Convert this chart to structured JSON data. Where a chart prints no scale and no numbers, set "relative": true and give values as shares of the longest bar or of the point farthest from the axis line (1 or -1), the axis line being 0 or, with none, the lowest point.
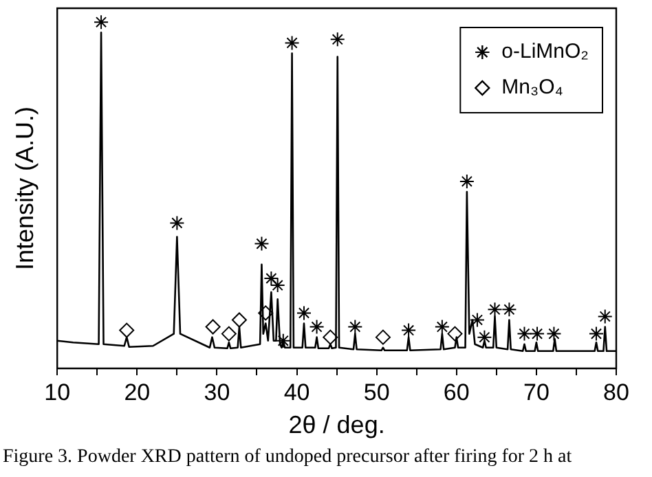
{
  "chart_data": {
    "type": "line",
    "relative": true,
    "xlabel": "2θ / deg.",
    "ylabel": "Intensity (A.U.)",
    "xlim": [
      10,
      80
    ],
    "xticks": [
      10,
      {
        "value": 15,
        "label": null
      },
      20,
      {
        "value": 25,
        "label": null
      },
      30,
      {
        "value": 35,
        "label": null
      },
      40,
      {
        "value": 45,
        "label": null
      },
      50,
      {
        "value": 55,
        "label": null
      },
      60,
      {
        "value": 65,
        "label": null
      },
      70,
      {
        "value": 75,
        "label": null
      },
      80
    ],
    "grid": false,
    "legend": "top right",
    "series": [
      {
        "color": "#000000",
        "marker": "none",
        "x": [
          10,
          12,
          15.2,
          15.5,
          15.8,
          18.4,
          18.7,
          19,
          22,
          24.6,
          25,
          25.4,
          29.1,
          29.4,
          29.7,
          31.3,
          31.5,
          31.7,
          32.6,
          32.8,
          33,
          35.4,
          35.6,
          35.8,
          36.1,
          36.4,
          36.8,
          37.1,
          37.4,
          37.6,
          37.9,
          38.1,
          38.3,
          38.5,
          39.2,
          39.4,
          39.6,
          40.7,
          40.9,
          41.1,
          42.3,
          42.5,
          42.7,
          44,
          44.2,
          44.4,
          44.9,
          45.1,
          45.3,
          47.1,
          47.3,
          47.5,
          50.6,
          50.8,
          51,
          53.8,
          54,
          54.2,
          58,
          58.2,
          58.4,
          59.8,
          60,
          60.2,
          61.1,
          61.3,
          61.6,
          62,
          62.3,
          63.3,
          63.5,
          63.7,
          64.6,
          64.8,
          65,
          66.4,
          66.6,
          66.8,
          68.3,
          68.5,
          68.7,
          69.8,
          70,
          70.2,
          72.1,
          72.3,
          72.5,
          77.3,
          77.5,
          77.7,
          78.4,
          78.6,
          78.8,
          80
        ],
        "values": [
          0.08,
          0.075,
          0.07,
          0.97,
          0.07,
          0.065,
          0.09,
          0.062,
          0.065,
          0.1,
          0.38,
          0.1,
          0.06,
          0.09,
          0.06,
          0.058,
          0.075,
          0.058,
          0.06,
          0.12,
          0.06,
          0.07,
          0.3,
          0.1,
          0.13,
          0.08,
          0.22,
          0.08,
          0.08,
          0.2,
          0.07,
          0.06,
          0.08,
          0.06,
          0.06,
          0.91,
          0.06,
          0.06,
          0.13,
          0.06,
          0.06,
          0.09,
          0.058,
          0.058,
          0.07,
          0.058,
          0.06,
          0.9,
          0.06,
          0.055,
          0.1,
          0.055,
          0.052,
          0.06,
          0.052,
          0.052,
          0.09,
          0.052,
          0.055,
          0.1,
          0.055,
          0.06,
          0.09,
          0.06,
          0.06,
          0.51,
          0.1,
          0.14,
          0.07,
          0.06,
          0.08,
          0.06,
          0.06,
          0.15,
          0.06,
          0.055,
          0.14,
          0.055,
          0.05,
          0.07,
          0.05,
          0.05,
          0.075,
          0.05,
          0.05,
          0.085,
          0.05,
          0.05,
          0.075,
          0.05,
          0.05,
          0.12,
          0.05,
          0.05
        ]
      },
      {
        "name": "o-LiMnO₂",
        "type": "scatter",
        "marker": "cross",
        "color": "#000000",
        "x": [
          15.5,
          25,
          35.6,
          36.8,
          37.6,
          38.3,
          39.4,
          40.9,
          42.5,
          45.1,
          47.3,
          54,
          58.2,
          61.3,
          62.6,
          63.5,
          64.8,
          66.6,
          68.5,
          70.1,
          72.2,
          77.5,
          78.6
        ],
        "values": [
          1,
          0.42,
          0.36,
          0.26,
          0.24,
          0.08,
          0.94,
          0.16,
          0.12,
          0.95,
          0.12,
          0.11,
          0.12,
          0.54,
          0.14,
          0.09,
          0.17,
          0.17,
          0.1,
          0.1,
          0.1,
          0.1,
          0.15
        ]
      },
      {
        "name": "Mn₃O₄",
        "type": "scatter",
        "marker": "diamond",
        "color": "#000000",
        "x": [
          18.7,
          29.5,
          31.5,
          32.8,
          36.1,
          44.2,
          50.8,
          59.8
        ],
        "values": [
          0.11,
          0.12,
          0.1,
          0.14,
          0.16,
          0.09,
          0.09,
          0.1
        ]
      }
    ],
    "annotations": [
      "Figure 3. Powder XRD pattern of undoped precursor after firing for 2 h at"
    ]
  }
}
